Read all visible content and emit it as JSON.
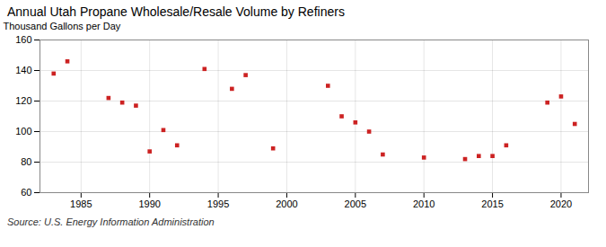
{
  "chart_data": {
    "type": "scatter",
    "title": "Annual Utah Propane Wholesale/Resale Volume by Refiners",
    "ylabel": "Thousand Gallons per Day",
    "annotations": [
      "Source: U.S. Energy Information Administration"
    ],
    "x": [
      1983,
      1984,
      1987,
      1988,
      1989,
      1990,
      1991,
      1992,
      1994,
      1996,
      1997,
      1999,
      2003,
      2004,
      2005,
      2006,
      2007,
      2010,
      2013,
      2014,
      2015,
      2016,
      2019,
      2020,
      2021
    ],
    "values": [
      138,
      146,
      122,
      119,
      117,
      87,
      101,
      91,
      141,
      128,
      137,
      89,
      130,
      110,
      106,
      100,
      85,
      83,
      82,
      84,
      84,
      91,
      119,
      123,
      105
    ],
    "color": "#cc2222",
    "marker": "square",
    "xlim": [
      1982,
      2022
    ],
    "xticks": [
      1985,
      1990,
      1995,
      2000,
      2005,
      2010,
      2015,
      2020
    ],
    "ylim": [
      60,
      160
    ],
    "yticks": [
      60,
      80,
      100,
      120,
      140,
      160
    ],
    "grid": true
  }
}
